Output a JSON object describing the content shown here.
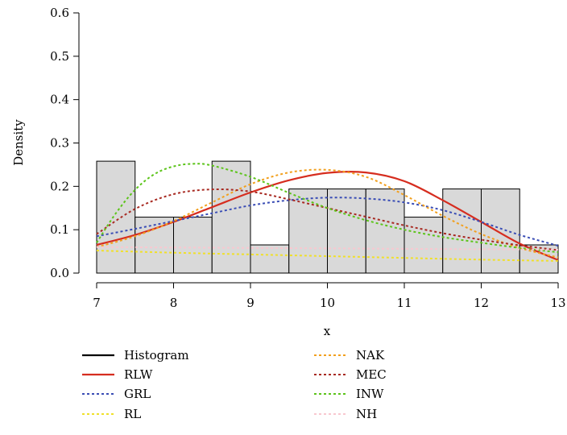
{
  "chart_data": {
    "type": "bar",
    "title": "",
    "xlabel": "x",
    "ylabel": "Density",
    "xlim": [
      7,
      13
    ],
    "ylim": [
      0,
      0.6
    ],
    "xticks": [
      "7",
      "8",
      "9",
      "10",
      "11",
      "12",
      "13"
    ],
    "yticks": [
      "0.0",
      "0.1",
      "0.2",
      "0.3",
      "0.4",
      "0.5",
      "0.6"
    ],
    "grid": false,
    "legend_position": "bottom",
    "histogram": {
      "name": "Histogram",
      "bin_edges": [
        7.0,
        7.5,
        8.0,
        8.5,
        9.0,
        9.5,
        10.0,
        10.5,
        11.0,
        11.5,
        12.0,
        12.5,
        13.0
      ],
      "density": [
        0.258,
        0.129,
        0.129,
        0.258,
        0.065,
        0.194,
        0.194,
        0.194,
        0.129,
        0.194,
        0.194,
        0.065
      ],
      "fill": "#d9d9d9",
      "stroke": "#000000"
    },
    "series": [
      {
        "name": "RLW",
        "color": "#d62d1f",
        "dash": "solid",
        "x": [
          7.0,
          7.5,
          8.0,
          8.5,
          9.0,
          9.5,
          10.0,
          10.5,
          11.0,
          11.5,
          12.0,
          12.5,
          13.0
        ],
        "y": [
          0.065,
          0.088,
          0.118,
          0.152,
          0.186,
          0.214,
          0.231,
          0.232,
          0.212,
          0.168,
          0.118,
          0.068,
          0.03
        ]
      },
      {
        "name": "GRL",
        "color": "#3a4db5",
        "dash": "dotted",
        "x": [
          7.0,
          7.5,
          8.0,
          8.5,
          9.0,
          9.5,
          10.0,
          10.5,
          11.0,
          11.5,
          12.0,
          12.5,
          13.0
        ],
        "y": [
          0.085,
          0.102,
          0.12,
          0.138,
          0.156,
          0.168,
          0.174,
          0.172,
          0.163,
          0.145,
          0.118,
          0.088,
          0.063
        ]
      },
      {
        "name": "RL",
        "color": "#f0e02a",
        "dash": "dotted",
        "x": [
          7.0,
          8.0,
          9.0,
          10.0,
          11.0,
          12.0,
          13.0
        ],
        "y": [
          0.052,
          0.047,
          0.043,
          0.039,
          0.035,
          0.031,
          0.028
        ]
      },
      {
        "name": "NAK",
        "color": "#f2a01e",
        "dash": "dotted",
        "x": [
          7.0,
          7.5,
          8.0,
          8.5,
          9.0,
          9.5,
          10.0,
          10.5,
          11.0,
          11.5,
          12.0,
          12.5,
          13.0
        ],
        "y": [
          0.06,
          0.085,
          0.12,
          0.163,
          0.205,
          0.232,
          0.238,
          0.222,
          0.18,
          0.132,
          0.09,
          0.058,
          0.036
        ]
      },
      {
        "name": "MEC",
        "color": "#a82a22",
        "dash": "dotted",
        "x": [
          7.0,
          7.5,
          8.0,
          8.5,
          9.0,
          9.5,
          10.0,
          10.5,
          11.0,
          11.5,
          12.0,
          12.5,
          13.0
        ],
        "y": [
          0.09,
          0.148,
          0.182,
          0.193,
          0.188,
          0.17,
          0.15,
          0.13,
          0.11,
          0.092,
          0.077,
          0.064,
          0.053
        ]
      },
      {
        "name": "INW",
        "color": "#5cc41a",
        "dash": "dotted",
        "x": [
          7.0,
          7.25,
          7.5,
          7.75,
          8.0,
          8.25,
          8.5,
          9.0,
          9.5,
          10.0,
          10.5,
          11.0,
          11.5,
          12.0,
          12.5,
          13.0
        ],
        "y": [
          0.07,
          0.138,
          0.192,
          0.228,
          0.246,
          0.252,
          0.248,
          0.222,
          0.185,
          0.15,
          0.122,
          0.1,
          0.083,
          0.07,
          0.058,
          0.048
        ]
      },
      {
        "name": "NH",
        "color": "#f8c8d0",
        "dash": "dotted",
        "x": [
          7.0,
          8.0,
          9.0,
          10.0,
          11.0,
          12.0,
          13.0
        ],
        "y": [
          0.06,
          0.059,
          0.058,
          0.057,
          0.056,
          0.055,
          0.054
        ]
      }
    ]
  }
}
